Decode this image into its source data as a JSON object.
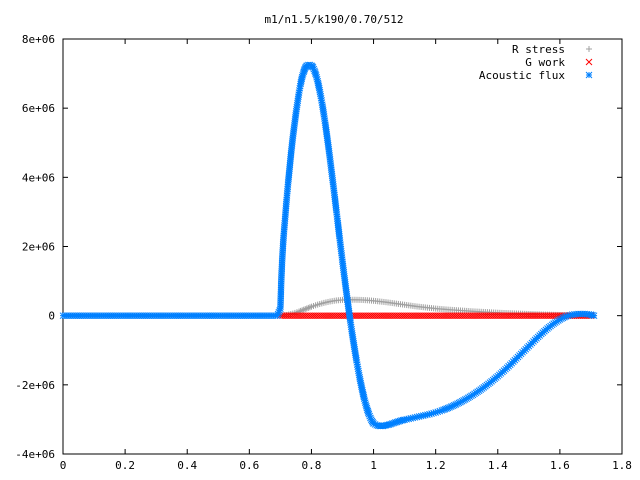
{
  "chart_data": {
    "type": "scatter",
    "title": "m1/n1.5/k190/0.70/512",
    "xlabel": "",
    "ylabel": "",
    "xlim": [
      0,
      1.8
    ],
    "ylim": [
      -4000000,
      8000000
    ],
    "x_ticks": [
      0,
      0.2,
      0.4,
      0.6,
      0.8,
      1,
      1.2,
      1.4,
      1.6,
      1.8
    ],
    "x_tick_labels": [
      "0",
      "0.2",
      "0.4",
      "0.6",
      "0.8",
      "1",
      "1.2",
      "1.4",
      "1.6",
      "1.8"
    ],
    "y_ticks": [
      -4000000,
      -2000000,
      0,
      2000000,
      4000000,
      6000000,
      8000000
    ],
    "y_tick_labels": [
      "-4e+06",
      "-2e+06",
      "0",
      "2e+06",
      "4e+06",
      "6e+06",
      "8e+06"
    ],
    "grid": false,
    "legend_placement": "top-right",
    "series": [
      {
        "name": "R stress",
        "marker": "plus",
        "color": "#a0a0a0",
        "points": [
          [
            0.7,
            0
          ],
          [
            0.72,
            20000
          ],
          [
            0.74,
            60000
          ],
          [
            0.76,
            120000
          ],
          [
            0.78,
            190000
          ],
          [
            0.8,
            260000
          ],
          [
            0.82,
            320000
          ],
          [
            0.84,
            370000
          ],
          [
            0.86,
            410000
          ],
          [
            0.88,
            440000
          ],
          [
            0.9,
            455000
          ],
          [
            0.92,
            460000
          ],
          [
            0.94,
            460000
          ],
          [
            0.96,
            455000
          ],
          [
            0.98,
            445000
          ],
          [
            1.0,
            430000
          ],
          [
            1.02,
            410000
          ],
          [
            1.04,
            390000
          ],
          [
            1.06,
            365000
          ],
          [
            1.08,
            340000
          ],
          [
            1.1,
            315000
          ],
          [
            1.12,
            290000
          ],
          [
            1.14,
            265000
          ],
          [
            1.16,
            245000
          ],
          [
            1.18,
            225000
          ],
          [
            1.2,
            205000
          ],
          [
            1.24,
            175000
          ],
          [
            1.28,
            150000
          ],
          [
            1.32,
            125000
          ],
          [
            1.36,
            105000
          ],
          [
            1.4,
            85000
          ],
          [
            1.44,
            70000
          ],
          [
            1.48,
            55000
          ],
          [
            1.52,
            42000
          ],
          [
            1.56,
            30000
          ],
          [
            1.6,
            20000
          ],
          [
            1.64,
            10000
          ],
          [
            1.68,
            3000
          ],
          [
            1.71,
            0
          ]
        ]
      },
      {
        "name": "G work",
        "marker": "cross",
        "color": "#ff0000",
        "points": [
          [
            0.7,
            0
          ],
          [
            0.8,
            0
          ],
          [
            0.9,
            0
          ],
          [
            1.0,
            0
          ],
          [
            1.1,
            0
          ],
          [
            1.2,
            0
          ],
          [
            1.3,
            0
          ],
          [
            1.4,
            0
          ],
          [
            1.5,
            0
          ],
          [
            1.6,
            0
          ],
          [
            1.65,
            0
          ],
          [
            1.7,
            0
          ]
        ]
      },
      {
        "name": "Acoustic flux",
        "marker": "star",
        "color": "#0080ff",
        "points": [
          [
            0,
            0
          ],
          [
            0.05,
            0
          ],
          [
            0.1,
            0
          ],
          [
            0.15,
            0
          ],
          [
            0.2,
            0
          ],
          [
            0.25,
            0
          ],
          [
            0.3,
            0
          ],
          [
            0.35,
            0
          ],
          [
            0.4,
            0
          ],
          [
            0.45,
            0
          ],
          [
            0.5,
            0
          ],
          [
            0.55,
            0
          ],
          [
            0.6,
            0
          ],
          [
            0.65,
            0
          ],
          [
            0.69,
            0
          ],
          [
            0.7,
            200000
          ],
          [
            0.703,
            1050000
          ],
          [
            0.706,
            1650000
          ],
          [
            0.71,
            2250000
          ],
          [
            0.715,
            2800000
          ],
          [
            0.72,
            3350000
          ],
          [
            0.725,
            3850000
          ],
          [
            0.73,
            4300000
          ],
          [
            0.735,
            4750000
          ],
          [
            0.74,
            5150000
          ],
          [
            0.745,
            5500000
          ],
          [
            0.75,
            5850000
          ],
          [
            0.755,
            6150000
          ],
          [
            0.76,
            6450000
          ],
          [
            0.765,
            6700000
          ],
          [
            0.77,
            6900000
          ],
          [
            0.775,
            7050000
          ],
          [
            0.78,
            7170000
          ],
          [
            0.785,
            7230000
          ],
          [
            0.79,
            7250000
          ],
          [
            0.795,
            7250000
          ],
          [
            0.8,
            7230000
          ],
          [
            0.805,
            7180000
          ],
          [
            0.81,
            7080000
          ],
          [
            0.815,
            6950000
          ],
          [
            0.82,
            6780000
          ],
          [
            0.825,
            6580000
          ],
          [
            0.83,
            6350000
          ],
          [
            0.835,
            6100000
          ],
          [
            0.84,
            5820000
          ],
          [
            0.845,
            5520000
          ],
          [
            0.85,
            5200000
          ],
          [
            0.855,
            4870000
          ],
          [
            0.86,
            4520000
          ],
          [
            0.865,
            4160000
          ],
          [
            0.87,
            3800000
          ],
          [
            0.875,
            3430000
          ],
          [
            0.88,
            3050000
          ],
          [
            0.885,
            2680000
          ],
          [
            0.89,
            2300000
          ],
          [
            0.895,
            1930000
          ],
          [
            0.9,
            1560000
          ],
          [
            0.905,
            1200000
          ],
          [
            0.91,
            850000
          ],
          [
            0.915,
            510000
          ],
          [
            0.92,
            180000
          ],
          [
            0.925,
            -140000
          ],
          [
            0.93,
            -450000
          ],
          [
            0.935,
            -740000
          ],
          [
            0.94,
            -1020000
          ],
          [
            0.945,
            -1290000
          ],
          [
            0.95,
            -1540000
          ],
          [
            0.955,
            -1780000
          ],
          [
            0.96,
            -2000000
          ],
          [
            0.965,
            -2210000
          ],
          [
            0.97,
            -2400000
          ],
          [
            0.975,
            -2570000
          ],
          [
            0.98,
            -2720000
          ],
          [
            0.985,
            -2850000
          ],
          [
            0.99,
            -2960000
          ],
          [
            0.995,
            -3050000
          ],
          [
            1.0,
            -3120000
          ],
          [
            1.01,
            -3170000
          ],
          [
            1.02,
            -3190000
          ],
          [
            1.03,
            -3190000
          ],
          [
            1.04,
            -3170000
          ],
          [
            1.05,
            -3150000
          ],
          [
            1.06,
            -3120000
          ],
          [
            1.07,
            -3090000
          ],
          [
            1.08,
            -3060000
          ],
          [
            1.09,
            -3030000
          ],
          [
            1.1,
            -3010000
          ],
          [
            1.12,
            -2970000
          ],
          [
            1.14,
            -2930000
          ],
          [
            1.16,
            -2890000
          ],
          [
            1.18,
            -2850000
          ],
          [
            1.2,
            -2800000
          ],
          [
            1.22,
            -2740000
          ],
          [
            1.24,
            -2670000
          ],
          [
            1.26,
            -2590000
          ],
          [
            1.28,
            -2500000
          ],
          [
            1.3,
            -2400000
          ],
          [
            1.32,
            -2290000
          ],
          [
            1.34,
            -2170000
          ],
          [
            1.36,
            -2040000
          ],
          [
            1.38,
            -1900000
          ],
          [
            1.4,
            -1750000
          ],
          [
            1.42,
            -1590000
          ],
          [
            1.44,
            -1420000
          ],
          [
            1.46,
            -1240000
          ],
          [
            1.48,
            -1060000
          ],
          [
            1.5,
            -880000
          ],
          [
            1.52,
            -700000
          ],
          [
            1.54,
            -530000
          ],
          [
            1.56,
            -370000
          ],
          [
            1.58,
            -230000
          ],
          [
            1.6,
            -110000
          ],
          [
            1.62,
            -20000
          ],
          [
            1.64,
            30000
          ],
          [
            1.66,
            50000
          ],
          [
            1.68,
            50000
          ],
          [
            1.7,
            30000
          ],
          [
            1.71,
            0
          ]
        ]
      }
    ]
  }
}
